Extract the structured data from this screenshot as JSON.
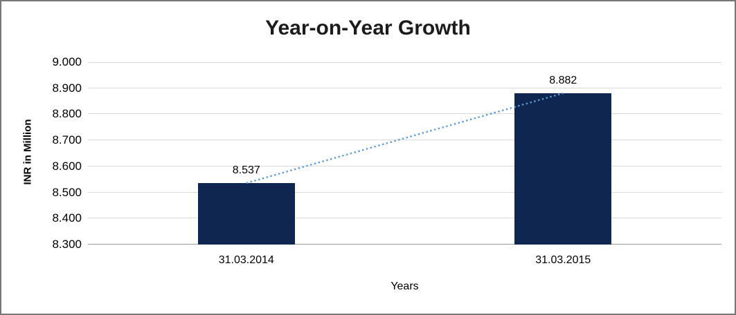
{
  "chart_data": {
    "type": "bar",
    "title": "Year-on-Year Growth",
    "xlabel": "Years",
    "ylabel": "INR in Million",
    "categories": [
      "31.03.2014",
      "31.03.2015"
    ],
    "values": [
      8.537,
      8.882
    ],
    "value_labels": [
      "8.537",
      "8.882"
    ],
    "ylim": [
      8.3,
      9.0
    ],
    "ytick_step": 0.1,
    "ytick_labels": [
      "8.300",
      "8.400",
      "8.500",
      "8.600",
      "8.700",
      "8.800",
      "8.900",
      "9.000"
    ],
    "grid": true,
    "legend": "none",
    "bar_color": "#0f2650",
    "trendline_color": "#5b9bd5",
    "trendline_style": "dotted"
  }
}
